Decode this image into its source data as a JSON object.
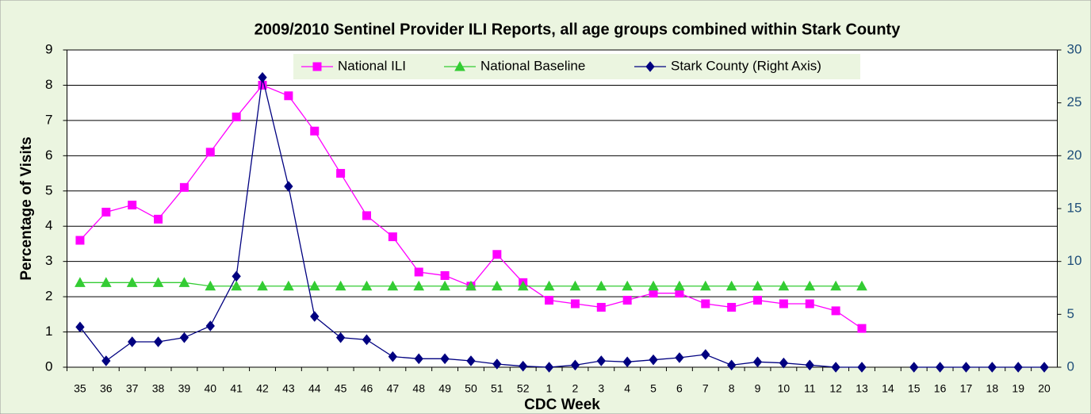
{
  "chart_data": {
    "type": "line",
    "title": "2009/2010 Sentinel Provider ILI Reports, all age groups combined within Stark County",
    "ylabel": "Percentage of Visits",
    "xlabel": "CDC Week",
    "categories": [
      "35",
      "36",
      "37",
      "38",
      "39",
      "40",
      "41",
      "42",
      "43",
      "44",
      "45",
      "46",
      "47",
      "48",
      "49",
      "50",
      "51",
      "52",
      "1",
      "2",
      "3",
      "4",
      "5",
      "6",
      "7",
      "8",
      "9",
      "10",
      "11",
      "12",
      "13",
      "14",
      "15",
      "16",
      "17",
      "18",
      "19",
      "20"
    ],
    "series": [
      {
        "name": "National ILI",
        "color": "#ff00ff",
        "marker": "square",
        "values": [
          3.6,
          4.4,
          4.6,
          4.2,
          5.1,
          6.1,
          7.1,
          8.0,
          7.7,
          6.7,
          5.5,
          4.3,
          3.7,
          2.7,
          2.6,
          2.3,
          3.2,
          2.4,
          1.9,
          1.8,
          1.7,
          1.9,
          2.1,
          2.1,
          1.8,
          1.7,
          1.9,
          1.8,
          1.8,
          1.6,
          1.1,
          null,
          null,
          null,
          null,
          null,
          null,
          null
        ]
      },
      {
        "name": "National Baseline",
        "color": "#33cc33",
        "marker": "triangle",
        "values": [
          2.4,
          2.4,
          2.4,
          2.4,
          2.4,
          2.3,
          2.3,
          2.3,
          2.3,
          2.3,
          2.3,
          2.3,
          2.3,
          2.3,
          2.3,
          2.3,
          2.3,
          2.3,
          2.3,
          2.3,
          2.3,
          2.3,
          2.3,
          2.3,
          2.3,
          2.3,
          2.3,
          2.3,
          2.3,
          2.3,
          2.3,
          null,
          null,
          null,
          null,
          null,
          null,
          null
        ]
      },
      {
        "name": "Stark County (Right Axis)",
        "color": "#000080",
        "marker": "diamond",
        "axis": "y2",
        "values": [
          3.8,
          0.6,
          2.4,
          2.4,
          2.8,
          3.9,
          8.6,
          27.4,
          17.1,
          4.8,
          2.8,
          2.6,
          1.0,
          0.8,
          0.8,
          0.6,
          0.3,
          0.1,
          0,
          0.2,
          0.6,
          0.5,
          0.7,
          0.9,
          1.2,
          0.2,
          0.5,
          0.4,
          0.2,
          0,
          0,
          null,
          0,
          0,
          0,
          0,
          0,
          0
        ]
      }
    ],
    "ylim": [
      0,
      9
    ],
    "yticks": [
      0,
      1,
      2,
      3,
      4,
      5,
      6,
      7,
      8,
      9
    ],
    "y2lim": [
      0,
      30
    ],
    "y2ticks": [
      0,
      5,
      10,
      15,
      20,
      25,
      30
    ],
    "grid": true,
    "legend": "top"
  }
}
